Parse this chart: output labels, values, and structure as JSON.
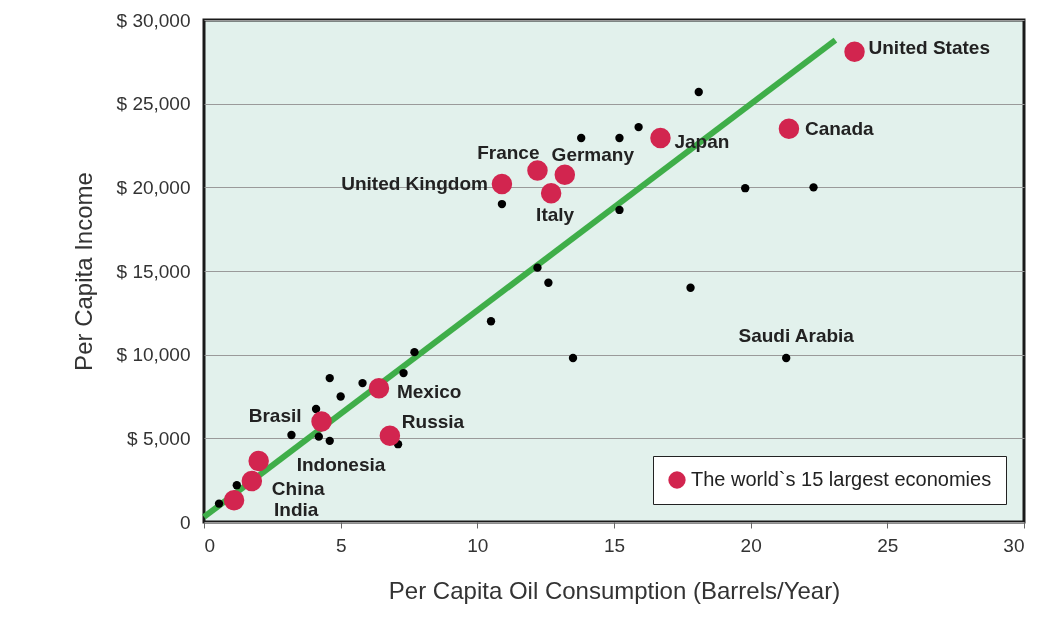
{
  "chart_data": {
    "type": "scatter",
    "xlabel": "Per Capita Oil Consumption (Barrels/Year)",
    "ylabel": "Per Capita Income",
    "xlim": [
      0,
      30
    ],
    "xticks": [
      0,
      5,
      10,
      15,
      20,
      25,
      30
    ],
    "ylim": [
      0,
      30000
    ],
    "yticks": [
      {
        "value": 0,
        "label": "0"
      },
      {
        "value": 5000,
        "label": "$ 5,000"
      },
      {
        "value": 10000,
        "label": "$ 10,000"
      },
      {
        "value": 15000,
        "label": "$ 15,000"
      },
      {
        "value": 20000,
        "label": "$ 20,000"
      },
      {
        "value": 25000,
        "label": "$ 25,000"
      },
      {
        "value": 30000,
        "label": "$ 30,000"
      }
    ],
    "grid": "y",
    "legend": "bottom right",
    "series": [
      {
        "color": "#000000",
        "x": [
          0.55,
          1.2,
          3.2,
          4.1,
          4.2,
          4.6,
          4.6,
          5.0,
          5.8,
          7.1,
          7.3,
          7.7,
          10.5,
          18.1,
          15.9,
          13.8,
          15.2,
          10.9,
          15.2,
          19.8,
          22.3,
          12.2,
          12.6,
          17.8,
          13.5,
          21.3
        ],
        "values": [
          1100,
          2200,
          5200,
          6750,
          5100,
          4850,
          8600,
          7500,
          8300,
          4650,
          8900,
          10150,
          12000,
          25700,
          23600,
          22950,
          22950,
          19000,
          18650,
          19950,
          20000,
          15200,
          14300,
          14000,
          9800,
          9800
        ]
      },
      {
        "name": "The world`s 15 largest economies",
        "color": "#d2254f",
        "x": [
          23.8,
          21.4,
          16.7,
          13.2,
          12.2,
          10.9,
          12.7,
          6.4,
          6.8,
          4.3,
          2.0,
          1.75,
          1.1
        ],
        "values": [
          28100,
          23500,
          22950,
          20750,
          21000,
          20200,
          19650,
          8000,
          5150,
          6000,
          3650,
          2450,
          1300
        ]
      },
      {
        "type": "line",
        "color": "#3fae49",
        "x": [
          0,
          23.1
        ],
        "values": [
          300,
          28800
        ]
      }
    ],
    "annotations": [
      {
        "text": "United States",
        "x": 23.8,
        "y": 28100
      },
      {
        "text": "Canada",
        "x": 21.4,
        "y": 23500
      },
      {
        "text": "Japan",
        "x": 16.7,
        "y": 22950
      },
      {
        "text": "Germany",
        "x": 13.2,
        "y": 20750
      },
      {
        "text": "France",
        "x": 12.2,
        "y": 21000
      },
      {
        "text": "United Kingdom",
        "x": 10.9,
        "y": 20200
      },
      {
        "text": "Italy",
        "x": 12.7,
        "y": 19650
      },
      {
        "text": "Mexico",
        "x": 6.4,
        "y": 8000
      },
      {
        "text": "Russia",
        "x": 6.8,
        "y": 5150
      },
      {
        "text": "Brasil",
        "x": 4.3,
        "y": 6000
      },
      {
        "text": "Indonesia",
        "x": 2.0,
        "y": 3650
      },
      {
        "text": "China",
        "x": 1.75,
        "y": 2450
      },
      {
        "text": "India",
        "x": 1.1,
        "y": 1300
      },
      {
        "text": "Saudi Arabia",
        "x": 21.3,
        "y": 9800
      }
    ]
  }
}
